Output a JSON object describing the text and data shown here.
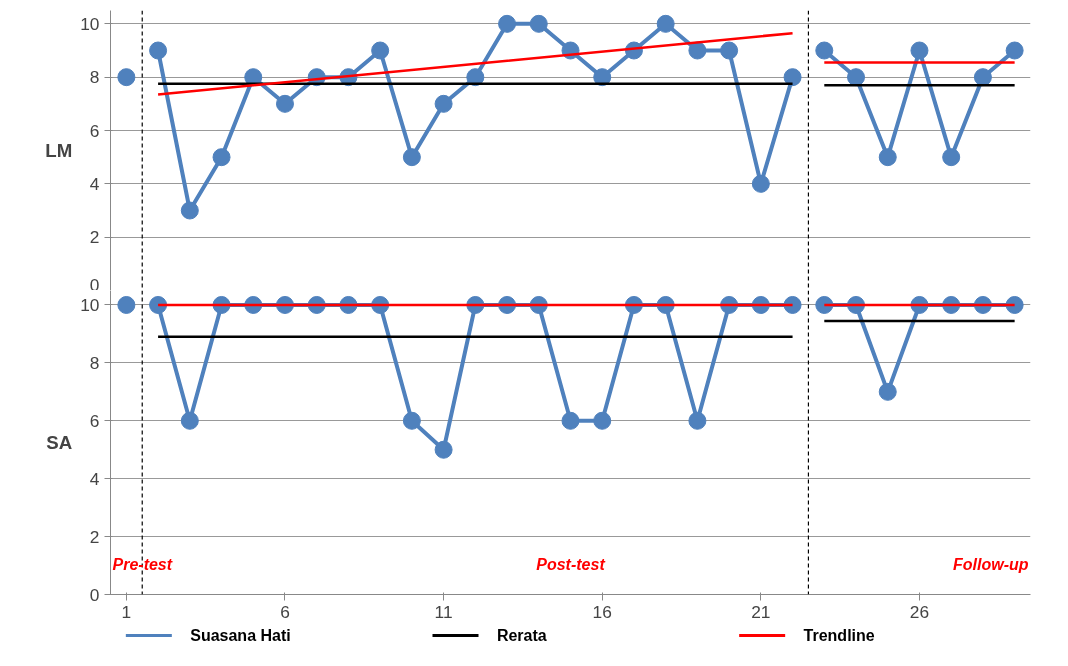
{
  "chart_data": [
    {
      "type": "line",
      "ylabel": "LM",
      "series": [
        {
          "color": "#4f81bd",
          "marker": "circle",
          "values": [
            8,
            null,
            9,
            3,
            5,
            8,
            7,
            8,
            8,
            9,
            5,
            7,
            8,
            10,
            10,
            9,
            8,
            9,
            10,
            9,
            9,
            4,
            8,
            null,
            9,
            8,
            5,
            9,
            5,
            8,
            9
          ],
          "x": [
            1,
            1.5,
            2,
            3,
            4,
            5,
            6,
            7,
            8,
            9,
            10,
            11,
            12,
            13,
            14,
            15,
            16,
            17,
            18,
            19,
            20,
            21,
            22,
            22.5,
            23,
            24,
            25,
            26,
            27,
            28,
            29
          ]
        },
        {
          "color": "#000000",
          "marker": "none",
          "values": [
            7.75,
            7.75,
            null,
            7.7,
            7.7
          ],
          "x": [
            2,
            22,
            22.5,
            23,
            29
          ]
        },
        {
          "color": "#ff0000",
          "marker": "none",
          "values": [
            7.35,
            9.65,
            null,
            8.55,
            8.55
          ],
          "x": [
            2,
            22,
            22.5,
            23,
            29
          ]
        }
      ],
      "xlim": [
        0.5,
        29.5
      ],
      "xticks": [
        1,
        6,
        11,
        16,
        21,
        26
      ],
      "ylim": [
        0,
        10.5
      ],
      "yticks": [
        0,
        2,
        4,
        6,
        8,
        10
      ],
      "grid": "y",
      "tick_labels": "y",
      "legend": false,
      "ref_lines": [
        {
          "axis": "x",
          "value": 1.5,
          "color": "#000000",
          "line_style": "dashed"
        },
        {
          "axis": "x",
          "value": 22.5,
          "color": "#000000",
          "line_style": "dashed"
        }
      ]
    },
    {
      "type": "line",
      "ylabel": "SA",
      "series": [
        {
          "name": "Suasana Hati",
          "color": "#4f81bd",
          "marker": "circle",
          "values": [
            10,
            null,
            10,
            6,
            10,
            10,
            10,
            10,
            10,
            10,
            6,
            5,
            10,
            10,
            10,
            6,
            6,
            10,
            10,
            6,
            10,
            10,
            10,
            null,
            10,
            10,
            7,
            10,
            10,
            10,
            10
          ],
          "x": [
            1,
            1.5,
            2,
            3,
            4,
            5,
            6,
            7,
            8,
            9,
            10,
            11,
            12,
            13,
            14,
            15,
            16,
            17,
            18,
            19,
            20,
            21,
            22,
            22.5,
            23,
            24,
            25,
            26,
            27,
            28,
            29
          ]
        },
        {
          "name": "Rerata",
          "color": "#000000",
          "marker": "none",
          "values": [
            8.9,
            8.9,
            null,
            9.45,
            9.45
          ],
          "x": [
            2,
            22,
            22.5,
            23,
            29
          ]
        },
        {
          "name": "Trendline",
          "color": "#ff0000",
          "marker": "none",
          "values": [
            10,
            10,
            null,
            10,
            10
          ],
          "x": [
            2,
            22,
            22.5,
            23,
            29
          ]
        }
      ],
      "xlim": [
        0.5,
        29.5
      ],
      "xticks": [
        1,
        6,
        11,
        16,
        21,
        26
      ],
      "ylim": [
        0,
        10.5
      ],
      "yticks": [
        0,
        2,
        4,
        6,
        8,
        10
      ],
      "grid": "y",
      "legend": "bottom",
      "ref_lines": [
        {
          "axis": "x",
          "value": 1.5,
          "color": "#000000",
          "line_style": "dashed"
        },
        {
          "axis": "x",
          "value": 22.5,
          "color": "#000000",
          "line_style": "dashed"
        }
      ],
      "annotations": [
        "Pre-test",
        "Post-test",
        "Follow-up"
      ]
    }
  ]
}
